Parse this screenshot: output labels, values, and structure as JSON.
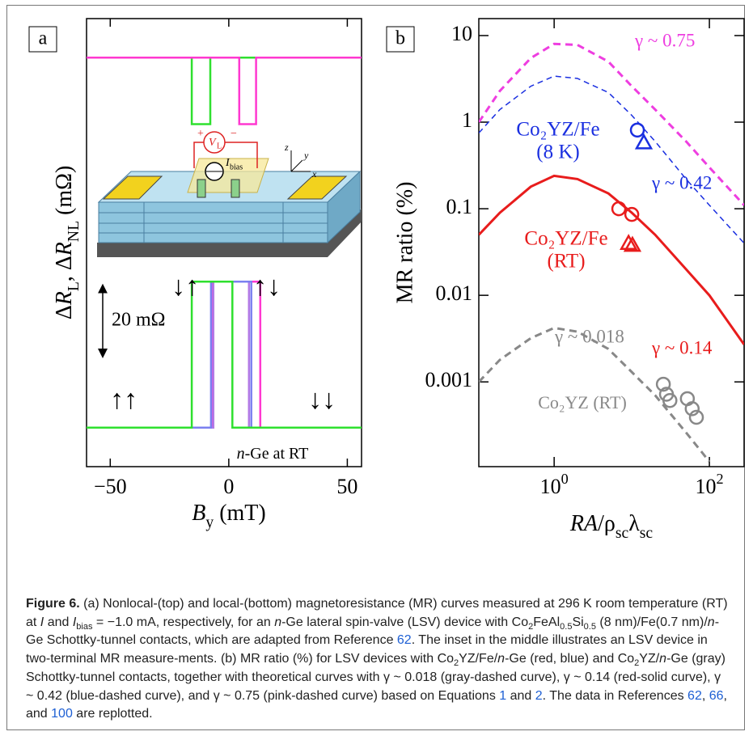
{
  "chart_data": [
    {
      "type": "line",
      "panel_label": "a",
      "x_label": [
        {
          "text": "B",
          "style": "i"
        },
        {
          "text": "y",
          "style": "sub"
        },
        {
          "text": " (mT)"
        }
      ],
      "y_label": [
        {
          "text": "Δ"
        },
        {
          "text": "R",
          "style": "i"
        },
        {
          "text": "L",
          "style": "sub"
        },
        {
          "text": ",   Δ"
        },
        {
          "text": "R",
          "style": "i"
        },
        {
          "text": "NL",
          "style": "sub"
        },
        {
          "text": " (mΩ)"
        }
      ],
      "xlim": [
        -60,
        56
      ],
      "xticks": [
        {
          "value": -50,
          "label": "−50"
        },
        0,
        50
      ],
      "ylim": [
        0,
        138
      ],
      "series": [
        {
          "color": "#2fe02f",
          "x": [
            -60,
            -15.6,
            -15.6,
            -7.8,
            -7.8,
            56
          ],
          "values": [
            126,
            126,
            105.5,
            105.5,
            126,
            126
          ]
        },
        {
          "color": "#ff38d0",
          "x": [
            -60,
            4.4,
            4.4,
            11.5,
            11.5,
            56
          ],
          "values": [
            126,
            126,
            105.5,
            105.5,
            126,
            126
          ]
        },
        {
          "color": "#ff38d0",
          "x": [
            -60,
            -7,
            -7,
            13.3,
            13.3,
            56
          ],
          "values": [
            12,
            12,
            57,
            57,
            12,
            12
          ]
        },
        {
          "color": "#b27ae6",
          "x": [
            -60,
            -6.5,
            -6.5,
            8.5,
            8.5,
            56
          ],
          "values": [
            12,
            12,
            57,
            57,
            12,
            12
          ]
        },
        {
          "color": "#7b80f0",
          "x": [
            -60,
            -7.5,
            -7.5,
            9.5,
            9.5,
            56
          ],
          "values": [
            12,
            12,
            57,
            57,
            12,
            12
          ]
        },
        {
          "color": "#2fe02f",
          "x": [
            -60,
            -15.6,
            -15.6,
            1.5,
            1.5,
            56
          ],
          "values": [
            12,
            12,
            57,
            57,
            12,
            12
          ]
        }
      ],
      "scale_bar": {
        "value": 20,
        "label": "20 mΩ"
      },
      "annotations": [
        [
          {
            "text": "↑↑"
          }
        ],
        [
          {
            "text": "↓↓"
          }
        ],
        [
          {
            "text": "↓↑"
          }
        ],
        [
          {
            "text": "↑↓"
          }
        ],
        [
          {
            "text": "n",
            "style": "i"
          },
          {
            "text": "-Ge at RT"
          }
        ]
      ]
    },
    {
      "type": "line",
      "panel_label": "b",
      "log_x": true,
      "log_y": true,
      "x_label": [
        {
          "text": "RA",
          "style": "i"
        },
        {
          "text": "/ρ"
        },
        {
          "text": "sc",
          "style": "sub"
        },
        {
          "text": "λ"
        },
        {
          "text": "sc",
          "style": "sub"
        }
      ],
      "y_label": "MR ratio (%)",
      "xlim": [
        0.107,
        280
      ],
      "xticks": [
        {
          "value": 1,
          "label": "10",
          "exponent": "0"
        },
        {
          "value": 100,
          "label": "10",
          "exponent": "2"
        }
      ],
      "ylim": [
        0.000105,
        15.7
      ],
      "yticks": [
        0.001,
        0.01,
        0.1,
        1,
        10
      ],
      "series": [
        {
          "name": "γ ~ 0.75",
          "color": "#ee3ee0",
          "dash": "9,6",
          "width": 3,
          "x": [
            0.107,
            0.2,
            0.5,
            1,
            2,
            5,
            10,
            20,
            50,
            100,
            280
          ],
          "values": [
            1.0,
            2.3,
            5.5,
            8.0,
            7.8,
            5,
            2.6,
            1.4,
            0.6,
            0.3,
            0.11
          ]
        },
        {
          "name": "γ ~ 0.42",
          "color": "#1a2fe0",
          "dash": "7,5",
          "width": 1.5,
          "x": [
            0.107,
            0.2,
            0.5,
            1,
            2,
            5,
            10,
            20,
            50,
            100,
            280
          ],
          "values": [
            0.75,
            1.4,
            2.6,
            3.4,
            3.2,
            2.2,
            1.2,
            0.6,
            0.22,
            0.11,
            0.04
          ]
        },
        {
          "name": "γ ~ 0.14",
          "color": "#e81c1c",
          "width": 3,
          "x": [
            0.107,
            0.2,
            0.5,
            1,
            2,
            5,
            10,
            20,
            50,
            100,
            280
          ],
          "values": [
            0.05,
            0.09,
            0.18,
            0.24,
            0.22,
            0.15,
            0.09,
            0.05,
            0.02,
            0.01,
            0.0027
          ]
        },
        {
          "name": "γ ~ 0.018",
          "color": "#888888",
          "dash": "9,6",
          "width": 3,
          "x": [
            0.107,
            0.2,
            0.5,
            1,
            2,
            5,
            10,
            20,
            50,
            100
          ],
          "values": [
            0.001,
            0.0018,
            0.0032,
            0.0042,
            0.0038,
            0.0024,
            0.0013,
            0.0007,
            0.00026,
            0.00012
          ]
        },
        {
          "marker": "circle",
          "color": "#1a2fe0",
          "x": [
            11.8
          ],
          "values": [
            0.81
          ]
        },
        {
          "marker": "triangle",
          "color": "#1a2fe0",
          "x": [
            14.3
          ],
          "values": [
            0.58
          ]
        },
        {
          "marker": "circle",
          "color": "#e81c1c",
          "x": [
            6.8,
            10
          ],
          "values": [
            0.1,
            0.086
          ]
        },
        {
          "marker": "triangle",
          "color": "#e81c1c",
          "x": [
            9.1,
            10.2
          ],
          "values": [
            0.04,
            0.038
          ]
        },
        {
          "marker": "circle",
          "color": "#888888",
          "x": [
            25.5,
            28,
            31,
            52,
            60,
            68
          ],
          "values": [
            0.00094,
            0.00072,
            0.00061,
            0.00064,
            0.00049,
            0.00039
          ]
        }
      ],
      "annotations": [
        {
          "text": "Co₂YZ/Fe",
          "color": "#1a2fe0"
        },
        {
          "text": "(8 K)",
          "color": "#1a2fe0"
        },
        {
          "text": "Co₂YZ/Fe",
          "color": "#e81c1c"
        },
        {
          "text": "(RT)",
          "color": "#e81c1c"
        },
        {
          "text": "Co₂YZ (RT)",
          "color": "#888888"
        }
      ]
    }
  ],
  "inset": {
    "labels": [
      "+",
      "V",
      "L",
      "−",
      "I",
      "bias",
      "z",
      "y",
      "x"
    ]
  },
  "caption": {
    "runs": [
      {
        "text": "Figure 6.",
        "style": "b"
      },
      {
        "text": "  (a) Nonlocal-(top) and local-(bottom) magnetoresistance (MR) curves measured at 296 K room temperature (RT) at "
      },
      {
        "text": "I",
        "style": "i"
      },
      {
        "text": " and "
      },
      {
        "text": "I",
        "style": "i"
      },
      {
        "text": "bias",
        "style": "sub"
      },
      {
        "text": " = −1.0 mA, respectively, for an "
      },
      {
        "text": "n",
        "style": "i"
      },
      {
        "text": "-Ge lateral spin-valve (LSV) device with Co"
      },
      {
        "text": "2",
        "style": "sub"
      },
      {
        "text": "FeAl"
      },
      {
        "text": "0.5",
        "style": "sub"
      },
      {
        "text": "Si"
      },
      {
        "text": "0.5",
        "style": "sub"
      },
      {
        "text": " (8 nm)/Fe(0.7 nm)/"
      },
      {
        "text": "n",
        "style": "i"
      },
      {
        "text": "-Ge Schottky-tunnel contacts, which are adapted from Reference "
      },
      {
        "text": "62",
        "style": "link"
      },
      {
        "text": ". The inset in the middle illustrates an LSV device in two-terminal MR measure-ments. (b) MR ratio (%) for LSV devices with Co"
      },
      {
        "text": "2",
        "style": "sub"
      },
      {
        "text": "YZ/Fe/"
      },
      {
        "text": "n",
        "style": "i"
      },
      {
        "text": "-Ge (red, blue) and Co"
      },
      {
        "text": "2",
        "style": "sub"
      },
      {
        "text": "YZ/"
      },
      {
        "text": "n",
        "style": "i"
      },
      {
        "text": "-Ge (gray) Schottky-tunnel contacts, together with theoretical curves with γ ~ 0.018 (gray-dashed curve), γ ~ 0.14 (red-solid curve), γ ~ 0.42 (blue-dashed curve), and γ ~ 0.75 (pink-dashed curve) based on Equations "
      },
      {
        "text": "1",
        "style": "link"
      },
      {
        "text": " and "
      },
      {
        "text": "2",
        "style": "link"
      },
      {
        "text": ". The data in References "
      },
      {
        "text": "62",
        "style": "link"
      },
      {
        "text": ", "
      },
      {
        "text": "66",
        "style": "link"
      },
      {
        "text": ", and "
      },
      {
        "text": "100",
        "style": "link"
      },
      {
        "text": " are replotted."
      }
    ]
  }
}
